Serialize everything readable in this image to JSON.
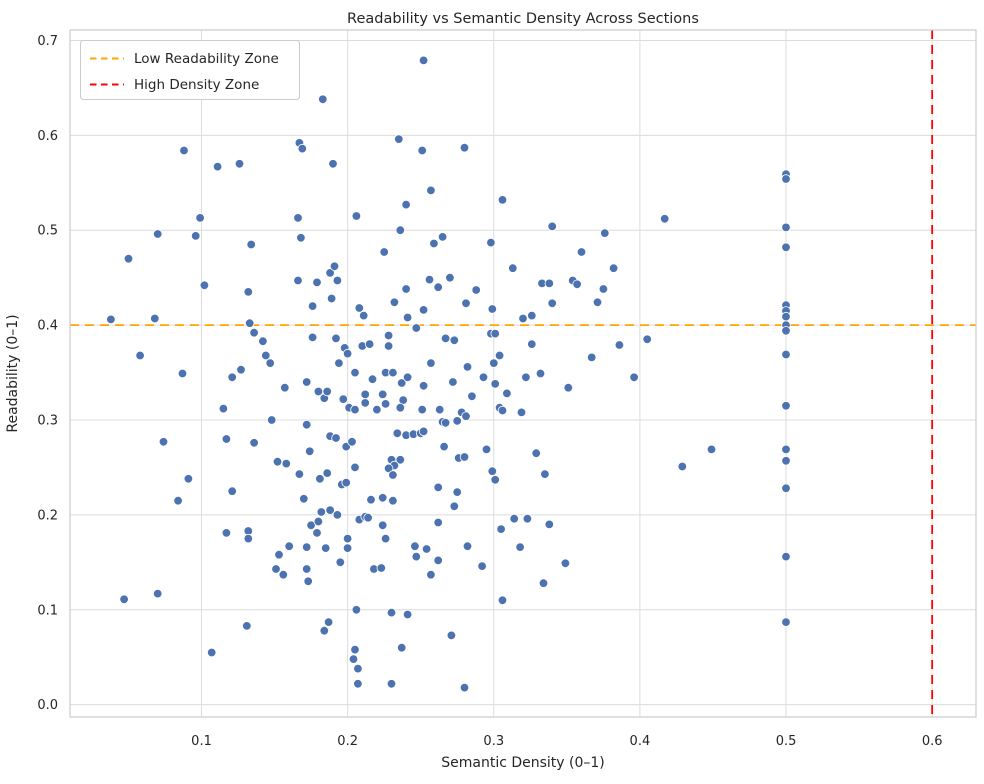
{
  "chart_data": {
    "type": "scatter",
    "title": "Readability vs Semantic Density Across Sections",
    "xlabel": "Semantic Density (0–1)",
    "ylabel": "Readability (0–1)",
    "xlim": [
      0.01,
      0.63
    ],
    "ylim": [
      -0.013,
      0.711
    ],
    "xticks": [
      0.1,
      0.2,
      0.3,
      0.4,
      0.5,
      0.6
    ],
    "yticks": [
      0.0,
      0.1,
      0.2,
      0.3,
      0.4,
      0.5,
      0.6,
      0.7
    ],
    "grid": true,
    "legend_position": "upper-left",
    "hline": {
      "y": 0.4,
      "color": "#FFA500",
      "style": "dashed",
      "label": "Low Readability Zone"
    },
    "vline": {
      "x": 0.6,
      "color": "#FF0000",
      "style": "dashed",
      "label": "High Density Zone"
    },
    "colors": {
      "marker": "#4C72B0",
      "marker_edge": "#FFFFFF",
      "grid": "#DCDCDC",
      "spine": "#CBCBCB",
      "text": "#262626",
      "background": "#FFFFFF"
    },
    "points": [
      [
        0.183,
        0.638
      ],
      [
        0.088,
        0.584
      ],
      [
        0.111,
        0.567
      ],
      [
        0.126,
        0.57
      ],
      [
        0.167,
        0.592
      ],
      [
        0.169,
        0.586
      ],
      [
        0.19,
        0.57
      ],
      [
        0.206,
        0.515
      ],
      [
        0.166,
        0.513
      ],
      [
        0.099,
        0.513
      ],
      [
        0.07,
        0.496
      ],
      [
        0.096,
        0.494
      ],
      [
        0.134,
        0.485
      ],
      [
        0.168,
        0.492
      ],
      [
        0.252,
        0.679
      ],
      [
        0.235,
        0.596
      ],
      [
        0.251,
        0.584
      ],
      [
        0.28,
        0.587
      ],
      [
        0.257,
        0.542
      ],
      [
        0.24,
        0.527
      ],
      [
        0.306,
        0.532
      ],
      [
        0.236,
        0.5
      ],
      [
        0.265,
        0.493
      ],
      [
        0.259,
        0.486
      ],
      [
        0.298,
        0.487
      ],
      [
        0.34,
        0.504
      ],
      [
        0.376,
        0.497
      ],
      [
        0.36,
        0.477
      ],
      [
        0.417,
        0.512
      ],
      [
        0.225,
        0.477
      ],
      [
        0.5,
        0.559
      ],
      [
        0.5,
        0.554
      ],
      [
        0.5,
        0.503
      ],
      [
        0.5,
        0.482
      ],
      [
        0.05,
        0.47
      ],
      [
        0.102,
        0.442
      ],
      [
        0.132,
        0.435
      ],
      [
        0.188,
        0.455
      ],
      [
        0.191,
        0.462
      ],
      [
        0.193,
        0.447
      ],
      [
        0.166,
        0.447
      ],
      [
        0.179,
        0.445
      ],
      [
        0.176,
        0.42
      ],
      [
        0.189,
        0.428
      ],
      [
        0.208,
        0.418
      ],
      [
        0.211,
        0.41
      ],
      [
        0.038,
        0.406
      ],
      [
        0.068,
        0.407
      ],
      [
        0.133,
        0.402
      ],
      [
        0.136,
        0.392
      ],
      [
        0.142,
        0.383
      ],
      [
        0.144,
        0.368
      ],
      [
        0.147,
        0.36
      ],
      [
        0.176,
        0.387
      ],
      [
        0.192,
        0.386
      ],
      [
        0.198,
        0.376
      ],
      [
        0.2,
        0.37
      ],
      [
        0.21,
        0.378
      ],
      [
        0.194,
        0.36
      ],
      [
        0.205,
        0.35
      ],
      [
        0.058,
        0.368
      ],
      [
        0.087,
        0.349
      ],
      [
        0.127,
        0.353
      ],
      [
        0.121,
        0.345
      ],
      [
        0.157,
        0.334
      ],
      [
        0.172,
        0.34
      ],
      [
        0.18,
        0.33
      ],
      [
        0.184,
        0.323
      ],
      [
        0.186,
        0.33
      ],
      [
        0.197,
        0.322
      ],
      [
        0.201,
        0.313
      ],
      [
        0.205,
        0.311
      ],
      [
        0.212,
        0.318
      ],
      [
        0.212,
        0.327
      ],
      [
        0.115,
        0.312
      ],
      [
        0.148,
        0.3
      ],
      [
        0.172,
        0.295
      ],
      [
        0.074,
        0.277
      ],
      [
        0.117,
        0.28
      ],
      [
        0.136,
        0.276
      ],
      [
        0.152,
        0.256
      ],
      [
        0.158,
        0.254
      ],
      [
        0.167,
        0.243
      ],
      [
        0.174,
        0.267
      ],
      [
        0.188,
        0.283
      ],
      [
        0.192,
        0.281
      ],
      [
        0.199,
        0.272
      ],
      [
        0.203,
        0.277
      ],
      [
        0.205,
        0.25
      ],
      [
        0.181,
        0.238
      ],
      [
        0.186,
        0.244
      ],
      [
        0.091,
        0.238
      ],
      [
        0.313,
        0.46
      ],
      [
        0.382,
        0.46
      ],
      [
        0.333,
        0.444
      ],
      [
        0.338,
        0.444
      ],
      [
        0.354,
        0.447
      ],
      [
        0.357,
        0.443
      ],
      [
        0.375,
        0.438
      ],
      [
        0.256,
        0.448
      ],
      [
        0.27,
        0.45
      ],
      [
        0.262,
        0.44
      ],
      [
        0.24,
        0.438
      ],
      [
        0.288,
        0.437
      ],
      [
        0.232,
        0.424
      ],
      [
        0.281,
        0.423
      ],
      [
        0.252,
        0.416
      ],
      [
        0.34,
        0.423
      ],
      [
        0.371,
        0.424
      ],
      [
        0.241,
        0.408
      ],
      [
        0.299,
        0.417
      ],
      [
        0.32,
        0.407
      ],
      [
        0.326,
        0.41
      ],
      [
        0.247,
        0.397
      ],
      [
        0.298,
        0.391
      ],
      [
        0.301,
        0.391
      ],
      [
        0.228,
        0.389
      ],
      [
        0.267,
        0.386
      ],
      [
        0.273,
        0.384
      ],
      [
        0.228,
        0.378
      ],
      [
        0.215,
        0.38
      ],
      [
        0.326,
        0.38
      ],
      [
        0.386,
        0.379
      ],
      [
        0.405,
        0.385
      ],
      [
        0.304,
        0.368
      ],
      [
        0.367,
        0.366
      ],
      [
        0.396,
        0.345
      ],
      [
        0.257,
        0.36
      ],
      [
        0.282,
        0.356
      ],
      [
        0.3,
        0.36
      ],
      [
        0.226,
        0.35
      ],
      [
        0.231,
        0.35
      ],
      [
        0.217,
        0.343
      ],
      [
        0.237,
        0.339
      ],
      [
        0.241,
        0.345
      ],
      [
        0.272,
        0.34
      ],
      [
        0.293,
        0.345
      ],
      [
        0.322,
        0.345
      ],
      [
        0.332,
        0.349
      ],
      [
        0.252,
        0.336
      ],
      [
        0.301,
        0.338
      ],
      [
        0.351,
        0.334
      ],
      [
        0.224,
        0.327
      ],
      [
        0.226,
        0.317
      ],
      [
        0.238,
        0.321
      ],
      [
        0.285,
        0.325
      ],
      [
        0.309,
        0.328
      ],
      [
        0.22,
        0.311
      ],
      [
        0.236,
        0.313
      ],
      [
        0.251,
        0.311
      ],
      [
        0.263,
        0.311
      ],
      [
        0.278,
        0.308
      ],
      [
        0.281,
        0.304
      ],
      [
        0.304,
        0.313
      ],
      [
        0.306,
        0.31
      ],
      [
        0.319,
        0.308
      ],
      [
        0.265,
        0.298
      ],
      [
        0.267,
        0.297
      ],
      [
        0.275,
        0.299
      ],
      [
        0.234,
        0.286
      ],
      [
        0.24,
        0.284
      ],
      [
        0.245,
        0.285
      ],
      [
        0.25,
        0.286
      ],
      [
        0.252,
        0.288
      ],
      [
        0.266,
        0.272
      ],
      [
        0.295,
        0.269
      ],
      [
        0.276,
        0.26
      ],
      [
        0.28,
        0.261
      ],
      [
        0.329,
        0.265
      ],
      [
        0.23,
        0.258
      ],
      [
        0.236,
        0.258
      ],
      [
        0.232,
        0.252
      ],
      [
        0.228,
        0.249
      ],
      [
        0.231,
        0.242
      ],
      [
        0.299,
        0.246
      ],
      [
        0.301,
        0.237
      ],
      [
        0.335,
        0.243
      ],
      [
        0.5,
        0.421
      ],
      [
        0.5,
        0.415
      ],
      [
        0.5,
        0.409
      ],
      [
        0.5,
        0.4
      ],
      [
        0.5,
        0.394
      ],
      [
        0.5,
        0.369
      ],
      [
        0.5,
        0.315
      ],
      [
        0.5,
        0.269
      ],
      [
        0.5,
        0.257
      ],
      [
        0.449,
        0.269
      ],
      [
        0.429,
        0.251
      ],
      [
        0.084,
        0.215
      ],
      [
        0.121,
        0.225
      ],
      [
        0.17,
        0.217
      ],
      [
        0.196,
        0.232
      ],
      [
        0.199,
        0.234
      ],
      [
        0.216,
        0.216
      ],
      [
        0.182,
        0.203
      ],
      [
        0.188,
        0.205
      ],
      [
        0.193,
        0.2
      ],
      [
        0.175,
        0.189
      ],
      [
        0.18,
        0.193
      ],
      [
        0.179,
        0.181
      ],
      [
        0.208,
        0.195
      ],
      [
        0.212,
        0.198
      ],
      [
        0.214,
        0.197
      ],
      [
        0.117,
        0.181
      ],
      [
        0.132,
        0.183
      ],
      [
        0.132,
        0.175
      ],
      [
        0.16,
        0.167
      ],
      [
        0.172,
        0.166
      ],
      [
        0.185,
        0.165
      ],
      [
        0.153,
        0.158
      ],
      [
        0.2,
        0.175
      ],
      [
        0.2,
        0.165
      ],
      [
        0.195,
        0.15
      ],
      [
        0.151,
        0.143
      ],
      [
        0.156,
        0.137
      ],
      [
        0.172,
        0.143
      ],
      [
        0.173,
        0.13
      ],
      [
        0.07,
        0.117
      ],
      [
        0.047,
        0.111
      ],
      [
        0.206,
        0.1
      ],
      [
        0.131,
        0.083
      ],
      [
        0.187,
        0.087
      ],
      [
        0.184,
        0.078
      ],
      [
        0.107,
        0.055
      ],
      [
        0.205,
        0.058
      ],
      [
        0.204,
        0.048
      ],
      [
        0.207,
        0.038
      ],
      [
        0.207,
        0.022
      ],
      [
        0.262,
        0.229
      ],
      [
        0.275,
        0.224
      ],
      [
        0.273,
        0.209
      ],
      [
        0.224,
        0.218
      ],
      [
        0.231,
        0.215
      ],
      [
        0.262,
        0.192
      ],
      [
        0.224,
        0.189
      ],
      [
        0.226,
        0.175
      ],
      [
        0.246,
        0.167
      ],
      [
        0.254,
        0.164
      ],
      [
        0.282,
        0.167
      ],
      [
        0.247,
        0.156
      ],
      [
        0.262,
        0.152
      ],
      [
        0.292,
        0.146
      ],
      [
        0.218,
        0.143
      ],
      [
        0.223,
        0.144
      ],
      [
        0.257,
        0.137
      ],
      [
        0.305,
        0.185
      ],
      [
        0.314,
        0.196
      ],
      [
        0.323,
        0.196
      ],
      [
        0.338,
        0.19
      ],
      [
        0.318,
        0.166
      ],
      [
        0.349,
        0.149
      ],
      [
        0.334,
        0.128
      ],
      [
        0.306,
        0.11
      ],
      [
        0.23,
        0.097
      ],
      [
        0.241,
        0.095
      ],
      [
        0.271,
        0.073
      ],
      [
        0.237,
        0.06
      ],
      [
        0.23,
        0.022
      ],
      [
        0.28,
        0.018
      ],
      [
        0.5,
        0.228
      ],
      [
        0.5,
        0.156
      ],
      [
        0.5,
        0.087
      ]
    ]
  }
}
